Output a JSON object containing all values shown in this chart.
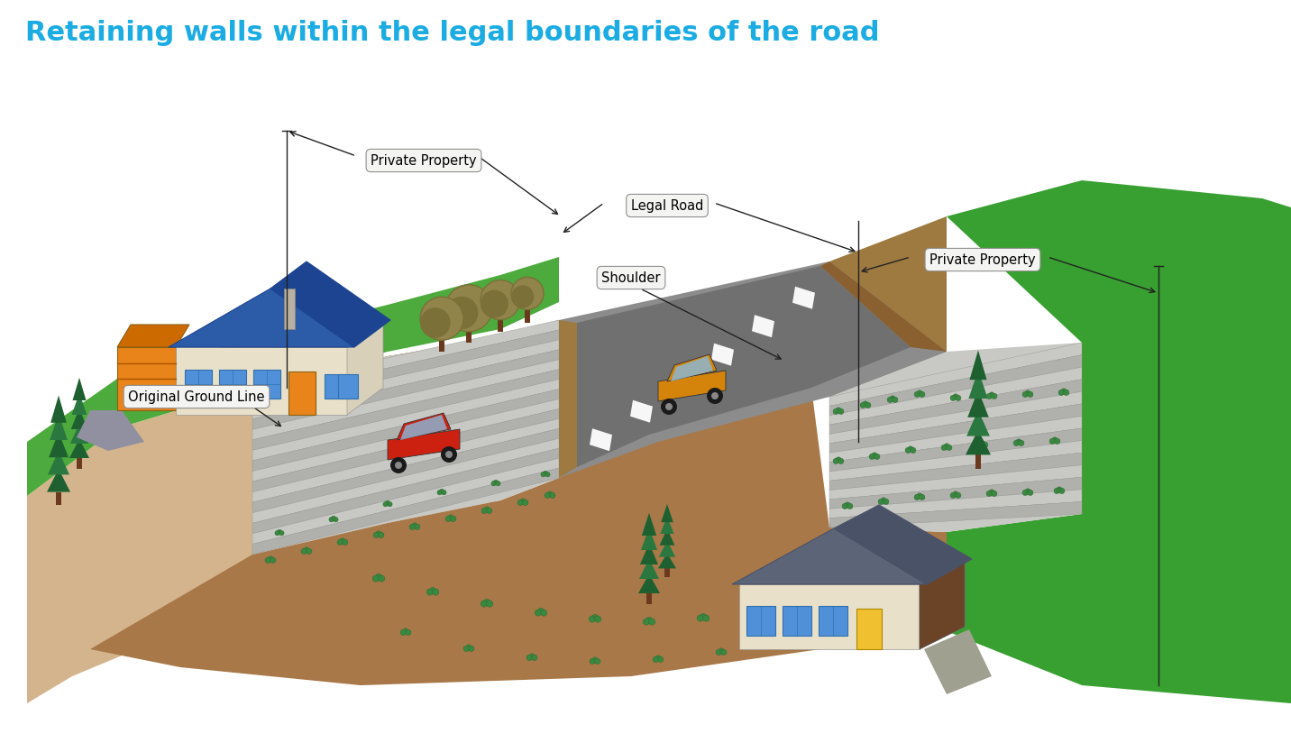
{
  "title": "Retaining walls within the legal boundaries of the road",
  "title_color": "#1AACE3",
  "title_fontsize": 22,
  "bg_color": "#ffffff",
  "labels": {
    "private_property_left": "Private Property",
    "legal_road": "Legal Road",
    "private_property_right": "Private Property",
    "shoulder": "Shoulder",
    "original_ground_line": "Original Ground Line"
  },
  "label_fontsize": 10.5,
  "colors": {
    "ground_sandy": "#D4B48C",
    "ground_sandy2": "#C8A878",
    "grass_bright": "#4DAA3C",
    "grass_medium": "#3D9030",
    "grass_dark": "#2E7A24",
    "grass_right": "#38A030",
    "road_grey": "#8C8C8C",
    "road_dark": "#707070",
    "shoulder_brown": "#9E7A40",
    "shoulder_dark": "#8A6030",
    "wall_light": "#C8C8C4",
    "wall_mid": "#B0B0AC",
    "wall_dark": "#989894",
    "wall_line": "#D8D8D4",
    "dirt_brown": "#A87848",
    "dirt_mid": "#9C6C3C",
    "house_wall": "#E8E0C8",
    "house_wall2": "#D8D0B8",
    "roof_blue": "#2C5CA8",
    "roof_blue_dark": "#1C4490",
    "roof_grey": "#5C6478",
    "roof_grey_dark": "#4A5268",
    "garage_brown": "#6B4428",
    "window_blue": "#5090D8",
    "window_blue2": "#3878C0",
    "door_orange": "#E8841A",
    "door_yellow": "#F0C030",
    "tree_dark": "#1E6030",
    "tree_mid": "#2A7840",
    "tree_light": "#3A8850",
    "tree_golden": "#90844A",
    "tree_golden2": "#7A7038",
    "tree_trunk": "#6B3A1E",
    "shrub_green": "#3A8840",
    "shrub_dark": "#2A6830",
    "driveway": "#A0A090",
    "path_grey": "#9090A0",
    "arrow_color": "#222222",
    "label_bg": "#F4F4F2",
    "label_edge": "#909090",
    "car_red_body": "#CC2010",
    "car_red_dark": "#AA1800",
    "car_orange_body": "#D4840A",
    "car_orange_dark": "#B06808",
    "car_window": "#88BBDD",
    "car_wheel": "#1A1A1A",
    "road_line_white": "#FFFFFF",
    "retaining_base": "#A89070"
  }
}
